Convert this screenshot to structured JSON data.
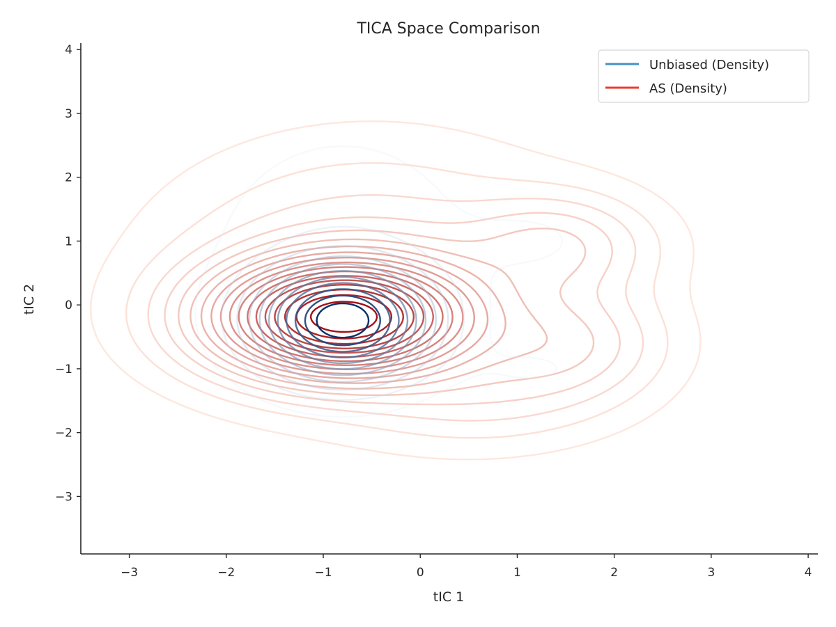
{
  "chart_data": {
    "type": "contour",
    "title": "TICA Space Comparison",
    "xlabel": "tIC 1",
    "ylabel": "tIC 2",
    "xlim": [
      -3.5,
      4.1
    ],
    "ylim": [
      -3.9,
      4.1
    ],
    "xticks": [
      -3,
      -2,
      -1,
      0,
      1,
      2,
      3,
      4
    ],
    "yticks": [
      -3,
      -2,
      -1,
      0,
      1,
      2,
      3,
      4
    ],
    "xtick_labels": [
      "−3",
      "−2",
      "−1",
      "0",
      "1",
      "2",
      "3",
      "4"
    ],
    "ytick_labels": [
      "−3",
      "−2",
      "−1",
      "0",
      "1",
      "2",
      "3",
      "4"
    ],
    "grid": false,
    "legend": {
      "position": "top-right",
      "entries": [
        {
          "label": "Unbiased (Density)",
          "color": "#4292c6"
        },
        {
          "label": "AS (Density)",
          "color": "#ef3b2c"
        }
      ]
    },
    "series": [
      {
        "name": "Unbiased (Density)",
        "colormap": "Blues",
        "levels": 11,
        "components": [
          {
            "x": -0.8,
            "y": -0.25,
            "sx": 0.5,
            "sy": 0.5,
            "w": 1.0
          },
          {
            "x": -0.8,
            "y": 0.7,
            "sx": 0.9,
            "sy": 1.3,
            "w": 0.05
          },
          {
            "x": 1.2,
            "y": 1.0,
            "sx": 0.5,
            "sy": 0.4,
            "w": 0.02
          },
          {
            "x": 1.2,
            "y": -1.0,
            "sx": 0.5,
            "sy": 0.3,
            "w": 0.02
          }
        ]
      },
      {
        "name": "AS (Density)",
        "colormap": "Reds",
        "levels": 18,
        "components": [
          {
            "x": -0.8,
            "y": -0.2,
            "sx": 0.8,
            "sy": 0.55,
            "w": 1.0
          },
          {
            "x": -0.5,
            "y": 0.5,
            "sx": 1.2,
            "sy": 1.1,
            "w": 0.1
          },
          {
            "x": 1.4,
            "y": 0.9,
            "sx": 0.6,
            "sy": 0.5,
            "w": 0.12
          },
          {
            "x": 1.5,
            "y": -0.6,
            "sx": 0.6,
            "sy": 0.55,
            "w": 0.12
          },
          {
            "x": 0.6,
            "y": -1.4,
            "sx": 0.8,
            "sy": 0.5,
            "w": 0.06
          }
        ]
      }
    ]
  }
}
